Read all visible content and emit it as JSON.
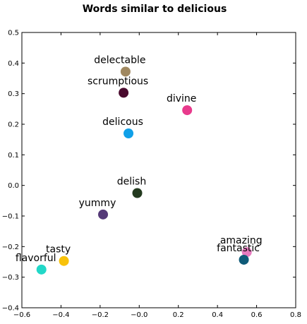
{
  "chart_data": {
    "type": "scatter",
    "title": "Words similar to delicious",
    "xlabel": "",
    "ylabel": "",
    "xlim": [
      -0.6,
      0.8
    ],
    "ylim": [
      -0.4,
      0.5
    ],
    "grid": false,
    "x_ticks": [
      -0.6,
      -0.4,
      -0.2,
      0.0,
      0.2,
      0.4,
      0.6,
      0.8
    ],
    "x_tick_labels": [
      "−0.6",
      "−0.4",
      "−0.2",
      "−0.0",
      "0.2",
      "0.4",
      "0.6",
      "0.8"
    ],
    "y_ticks": [
      -0.4,
      -0.3,
      -0.2,
      -0.1,
      0.0,
      0.1,
      0.2,
      0.3,
      0.4,
      0.5
    ],
    "y_tick_labels": [
      "−0.4",
      "−0.3",
      "−0.2",
      "−0.1",
      "0.0",
      "0.1",
      "0.2",
      "0.3",
      "0.4",
      "0.5"
    ],
    "points": [
      {
        "label": "delectable",
        "x": -0.07,
        "y": 0.372,
        "color": "#a08860"
      },
      {
        "label": "scrumptious",
        "x": -0.08,
        "y": 0.303,
        "color": "#4a0a2e"
      },
      {
        "label": "divine",
        "x": 0.245,
        "y": 0.246,
        "color": "#e83a8c"
      },
      {
        "label": "delicous",
        "x": -0.055,
        "y": 0.17,
        "color": "#10a0e8"
      },
      {
        "label": "delish",
        "x": -0.01,
        "y": -0.025,
        "color": "#233a1f"
      },
      {
        "label": "yummy",
        "x": -0.185,
        "y": -0.095,
        "color": "#553a78"
      },
      {
        "label": "amazing",
        "x": 0.55,
        "y": -0.218,
        "color": "#e67abe"
      },
      {
        "label": "fantastic",
        "x": 0.535,
        "y": -0.243,
        "color": "#0e5a78"
      },
      {
        "label": "tasty",
        "x": -0.385,
        "y": -0.247,
        "color": "#f8c20a"
      },
      {
        "label": "flavorful",
        "x": -0.5,
        "y": -0.275,
        "color": "#22d8c8"
      }
    ]
  }
}
